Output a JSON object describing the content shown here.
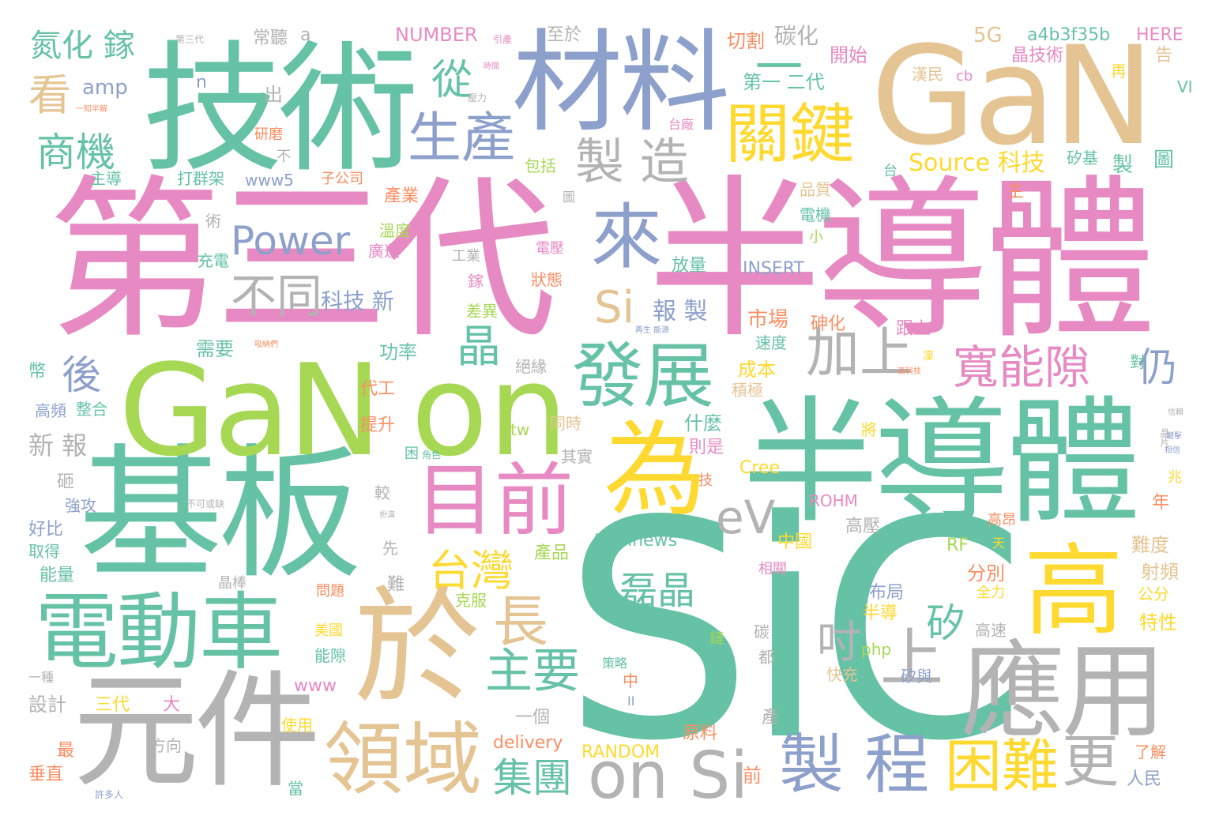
{
  "palette": {
    "green": "#66c2a5",
    "orange": "#fc8d62",
    "blue": "#8da0cb",
    "pink": "#e78ac3",
    "lime": "#a6d854",
    "yellow": "#ffd92f",
    "tan": "#e5c494",
    "gray": "#b3b3b3"
  },
  "words": [
    {
      "t": "SiC",
      "c": "green"
    },
    {
      "t": "第三代",
      "c": "pink"
    },
    {
      "t": "半導體",
      "c": "pink"
    },
    {
      "t": "半導體",
      "c": "green"
    },
    {
      "t": "基板",
      "c": "green"
    },
    {
      "t": "技術",
      "c": "green"
    },
    {
      "t": "GaN",
      "c": "tan"
    },
    {
      "t": "GaN",
      "c": "lime"
    },
    {
      "t": "on",
      "c": "lime"
    },
    {
      "t": "材料",
      "c": "blue"
    },
    {
      "t": "於",
      "c": "tan"
    },
    {
      "t": "元件",
      "c": "gray"
    },
    {
      "t": "應用",
      "c": "gray"
    },
    {
      "t": "為",
      "c": "yellow"
    },
    {
      "t": "高",
      "c": "yellow"
    },
    {
      "t": "電動車",
      "c": "green"
    },
    {
      "t": "領域",
      "c": "tan"
    },
    {
      "t": "目前",
      "c": "pink"
    },
    {
      "t": "發展",
      "c": "green"
    },
    {
      "t": "關鍵",
      "c": "yellow"
    },
    {
      "t": "來",
      "c": "blue"
    },
    {
      "t": "生產",
      "c": "blue"
    },
    {
      "t": "製 造",
      "c": "gray"
    },
    {
      "t": "on Si",
      "c": "gray"
    },
    {
      "t": "製 程",
      "c": "blue"
    },
    {
      "t": "困難",
      "c": "yellow"
    },
    {
      "t": "更",
      "c": "gray"
    },
    {
      "t": "上",
      "c": "gray"
    },
    {
      "t": "加上",
      "c": "gray"
    },
    {
      "t": "寬能隙",
      "c": "pink"
    },
    {
      "t": "仍",
      "c": "blue"
    },
    {
      "t": "不同",
      "c": "gray"
    },
    {
      "t": "Power",
      "c": "blue"
    },
    {
      "t": "Si",
      "c": "tan"
    },
    {
      "t": "晶",
      "c": "green"
    },
    {
      "t": "長",
      "c": "tan"
    },
    {
      "t": "台灣",
      "c": "yellow"
    },
    {
      "t": "主要",
      "c": "green"
    },
    {
      "t": "集團",
      "c": "green"
    },
    {
      "t": "磊晶",
      "c": "green"
    },
    {
      "t": "吋",
      "c": "gray"
    },
    {
      "t": "矽",
      "c": "green"
    },
    {
      "t": "eV",
      "c": "gray"
    },
    {
      "t": "商機",
      "c": "green"
    },
    {
      "t": "看",
      "c": "tan"
    },
    {
      "t": "從",
      "c": "green"
    },
    {
      "t": "一",
      "c": "green"
    },
    {
      "t": "後",
      "c": "blue"
    },
    {
      "t": "氮化 鎵",
      "c": "green"
    },
    {
      "t": "amp",
      "c": "blue"
    },
    {
      "t": "n",
      "c": "blue"
    },
    {
      "t": "出",
      "c": "gray"
    },
    {
      "t": "常聽",
      "c": "gray"
    },
    {
      "t": "a",
      "c": "gray"
    },
    {
      "t": "第三代",
      "c": "gray"
    },
    {
      "t": "NUMBER",
      "c": "pink"
    },
    {
      "t": "引產",
      "c": "pink"
    },
    {
      "t": "至於",
      "c": "gray"
    },
    {
      "t": "切割",
      "c": "orange"
    },
    {
      "t": "碳化",
      "c": "gray"
    },
    {
      "t": "開始",
      "c": "pink"
    },
    {
      "t": "5G",
      "c": "tan"
    },
    {
      "t": "a4b3f35b",
      "c": "green"
    },
    {
      "t": "HERE",
      "c": "pink"
    },
    {
      "t": "晶技術",
      "c": "pink"
    },
    {
      "t": "再",
      "c": "yellow"
    },
    {
      "t": "告",
      "c": "tan"
    },
    {
      "t": "漢民",
      "c": "tan"
    },
    {
      "t": "cb",
      "c": "pink"
    },
    {
      "t": "VI",
      "c": "green"
    },
    {
      "t": "第一 二代",
      "c": "green"
    },
    {
      "t": "一知半解",
      "c": "orange"
    },
    {
      "t": "壓力",
      "c": "gray"
    },
    {
      "t": "時間",
      "c": "pink"
    },
    {
      "t": "台廠",
      "c": "pink"
    },
    {
      "t": "研磨",
      "c": "orange"
    },
    {
      "t": "不",
      "c": "gray"
    },
    {
      "t": "主導",
      "c": "green"
    },
    {
      "t": "打群架",
      "c": "green"
    },
    {
      "t": "www5",
      "c": "blue"
    },
    {
      "t": "子公司",
      "c": "orange"
    },
    {
      "t": "包括",
      "c": "lime"
    },
    {
      "t": "台",
      "c": "green"
    },
    {
      "t": "Source 科技",
      "c": "yellow"
    },
    {
      "t": "矽基",
      "c": "green"
    },
    {
      "t": "製",
      "c": "green"
    },
    {
      "t": "圖",
      "c": "green"
    },
    {
      "t": "產業",
      "c": "orange"
    },
    {
      "t": "圖",
      "c": "gray"
    },
    {
      "t": "品質",
      "c": "tan"
    },
    {
      "t": "主",
      "c": "orange"
    },
    {
      "t": "術",
      "c": "gray"
    },
    {
      "t": "電機",
      "c": "green"
    },
    {
      "t": "小",
      "c": "lime"
    },
    {
      "t": "溫度",
      "c": "lime"
    },
    {
      "t": "廣運",
      "c": "pink"
    },
    {
      "t": "充電",
      "c": "green"
    },
    {
      "t": "工業",
      "c": "gray"
    },
    {
      "t": "電壓",
      "c": "pink"
    },
    {
      "t": "放量",
      "c": "green"
    },
    {
      "t": "INSERT",
      "c": "blue"
    },
    {
      "t": "鎵",
      "c": "pink"
    },
    {
      "t": "狀態",
      "c": "orange"
    },
    {
      "t": "科技 新",
      "c": "blue"
    },
    {
      "t": "報 製",
      "c": "blue"
    },
    {
      "t": "市場",
      "c": "orange"
    },
    {
      "t": "砷化",
      "c": "orange"
    },
    {
      "t": "跟上",
      "c": "pink"
    },
    {
      "t": "差異",
      "c": "lime"
    },
    {
      "t": "速度",
      "c": "green"
    },
    {
      "t": "需要",
      "c": "green"
    },
    {
      "t": "功率",
      "c": "green"
    },
    {
      "t": "絕緣",
      "c": "gray"
    },
    {
      "t": "成本",
      "c": "yellow"
    },
    {
      "t": "積極",
      "c": "tan"
    },
    {
      "t": "對",
      "c": "green"
    },
    {
      "t": "高科技",
      "c": "orange"
    },
    {
      "t": "凜",
      "c": "yellow"
    },
    {
      "t": "代工",
      "c": "orange"
    },
    {
      "t": "什麼",
      "c": "green"
    },
    {
      "t": "同時",
      "c": "tan"
    },
    {
      "t": "提升",
      "c": "orange"
    },
    {
      "t": "tw",
      "c": "lime"
    },
    {
      "t": "則是",
      "c": "pink"
    },
    {
      "t": "將",
      "c": "yellow"
    },
    {
      "t": "新 報",
      "c": "gray"
    },
    {
      "t": "其實",
      "c": "gray"
    },
    {
      "t": "困",
      "c": "green"
    },
    {
      "t": "角色",
      "c": "green"
    },
    {
      "t": "技",
      "c": "orange"
    },
    {
      "t": "Cree",
      "c": "yellow"
    },
    {
      "t": "砸",
      "c": "gray"
    },
    {
      "t": "強攻",
      "c": "blue"
    },
    {
      "t": "不可或缺",
      "c": "gray"
    },
    {
      "t": "好比",
      "c": "blue"
    },
    {
      "t": "較",
      "c": "gray"
    },
    {
      "t": "扮演",
      "c": "gray"
    },
    {
      "t": "ROHM",
      "c": "pink"
    },
    {
      "t": "高壓",
      "c": "gray"
    },
    {
      "t": "高昂",
      "c": "orange"
    },
    {
      "t": "取得",
      "c": "green"
    },
    {
      "t": "先",
      "c": "gray"
    },
    {
      "t": "technews",
      "c": "green"
    },
    {
      "t": "中國",
      "c": "yellow"
    },
    {
      "t": "RF",
      "c": "lime"
    },
    {
      "t": "天",
      "c": "yellow"
    },
    {
      "t": "難度",
      "c": "tan"
    },
    {
      "t": "能量",
      "c": "green"
    },
    {
      "t": "晶棒",
      "c": "gray"
    },
    {
      "t": "難",
      "c": "gray"
    },
    {
      "t": "產品",
      "c": "lime"
    },
    {
      "t": "相關",
      "c": "pink"
    },
    {
      "t": "分別",
      "c": "orange"
    },
    {
      "t": "全力",
      "c": "yellow"
    },
    {
      "t": "射頻",
      "c": "tan"
    },
    {
      "t": "公分",
      "c": "yellow"
    },
    {
      "t": "問題",
      "c": "orange"
    },
    {
      "t": "克服",
      "c": "lime"
    },
    {
      "t": "布局",
      "c": "blue"
    },
    {
      "t": "半導",
      "c": "yellow"
    },
    {
      "t": "特性",
      "c": "yellow"
    },
    {
      "t": "美國",
      "c": "yellow"
    },
    {
      "t": "能隙",
      "c": "green"
    },
    {
      "t": "鏈",
      "c": "lime"
    },
    {
      "t": "碳",
      "c": "gray"
    },
    {
      "t": "都",
      "c": "gray"
    },
    {
      "t": "php",
      "c": "lime"
    },
    {
      "t": "高速",
      "c": "gray"
    },
    {
      "t": "策略",
      "c": "green"
    },
    {
      "t": "中",
      "c": "orange"
    },
    {
      "t": "快充",
      "c": "tan"
    },
    {
      "t": "矽與",
      "c": "blue"
    },
    {
      "t": "一種",
      "c": "gray"
    },
    {
      "t": "www",
      "c": "pink"
    },
    {
      "t": "設計",
      "c": "gray"
    },
    {
      "t": "三代",
      "c": "yellow"
    },
    {
      "t": "大",
      "c": "pink"
    },
    {
      "t": "II",
      "c": "blue"
    },
    {
      "t": "產",
      "c": "gray"
    },
    {
      "t": "使用",
      "c": "yellow"
    },
    {
      "t": "方向",
      "c": "gray"
    },
    {
      "t": "一個",
      "c": "gray"
    },
    {
      "t": "原料",
      "c": "orange"
    },
    {
      "t": "最",
      "c": "orange"
    },
    {
      "t": "delivery",
      "c": "orange"
    },
    {
      "t": "RANDOM",
      "c": "yellow"
    },
    {
      "t": "了解",
      "c": "orange"
    },
    {
      "t": "垂直",
      "c": "orange"
    },
    {
      "t": "人民",
      "c": "blue"
    },
    {
      "t": "許多人",
      "c": "blue"
    },
    {
      "t": "當",
      "c": "green"
    },
    {
      "t": "前",
      "c": "orange"
    },
    {
      "t": "兆",
      "c": "yellow"
    },
    {
      "t": "年",
      "c": "orange"
    },
    {
      "t": "晶片",
      "c": "gray"
    },
    {
      "t": "幣",
      "c": "green"
    },
    {
      "t": "高頻",
      "c": "blue"
    },
    {
      "t": "整合",
      "c": "green"
    },
    {
      "t": "吸納們",
      "c": "orange"
    },
    {
      "t": "再生 能源",
      "c": "blue"
    },
    {
      "t": "信賴",
      "c": "gray"
    },
    {
      "t": "鍵擊",
      "c": "blue"
    },
    {
      "t": "相信",
      "c": "blue"
    }
  ]
}
